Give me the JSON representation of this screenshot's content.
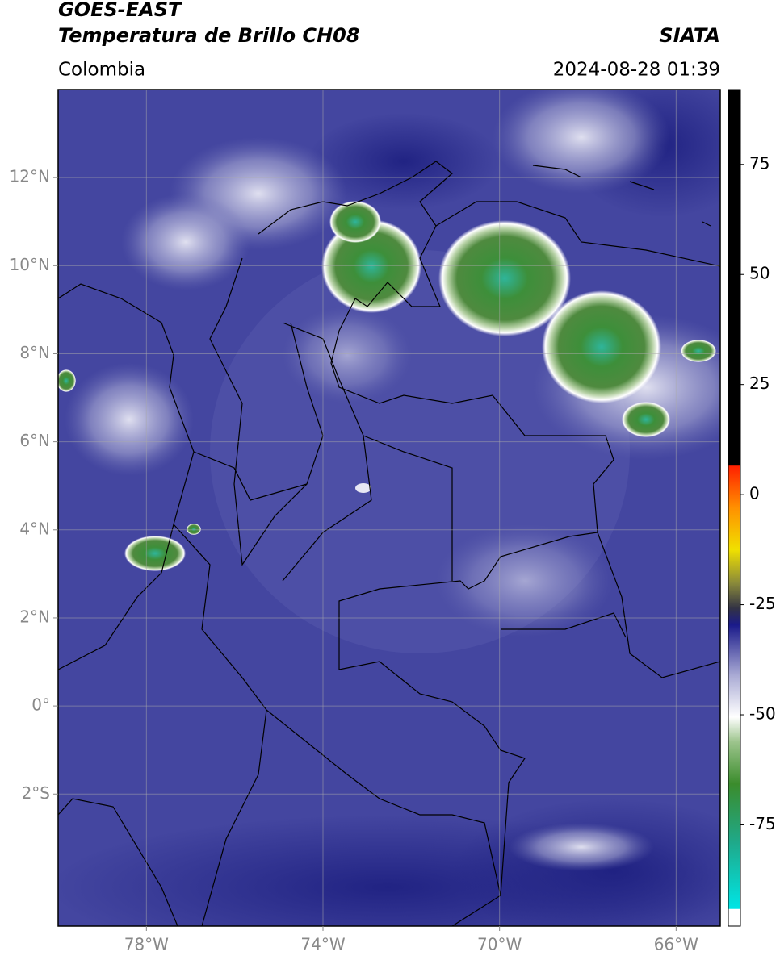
{
  "header": {
    "title": "GOES-EAST",
    "subtitle": "Temperatura de Brillo CH08",
    "region": "Colombia",
    "source": "SIATA",
    "datetime": "2024-08-28 01:39"
  },
  "map": {
    "lonlim": [
      -80,
      -65
    ],
    "latlim": [
      -5,
      14
    ],
    "lonticks": [
      {
        "value": -78,
        "label": "78°W"
      },
      {
        "value": -74,
        "label": "74°W"
      },
      {
        "value": -70,
        "label": "70°W"
      },
      {
        "value": -66,
        "label": "66°W"
      }
    ],
    "latticks": [
      {
        "value": 12,
        "label": "12°N"
      },
      {
        "value": 10,
        "label": "10°N"
      },
      {
        "value": 8,
        "label": "8°N"
      },
      {
        "value": 6,
        "label": "6°N"
      },
      {
        "value": 4,
        "label": "4°N"
      },
      {
        "value": 2,
        "label": "2°N"
      },
      {
        "value": 0,
        "label": "0°"
      },
      {
        "value": -2,
        "label": "2°S"
      }
    ],
    "grid": true
  },
  "colorbar": {
    "lim": [
      -98,
      92
    ],
    "ticks": [
      75,
      50,
      25,
      0,
      -25,
      -50,
      -75
    ]
  }
}
